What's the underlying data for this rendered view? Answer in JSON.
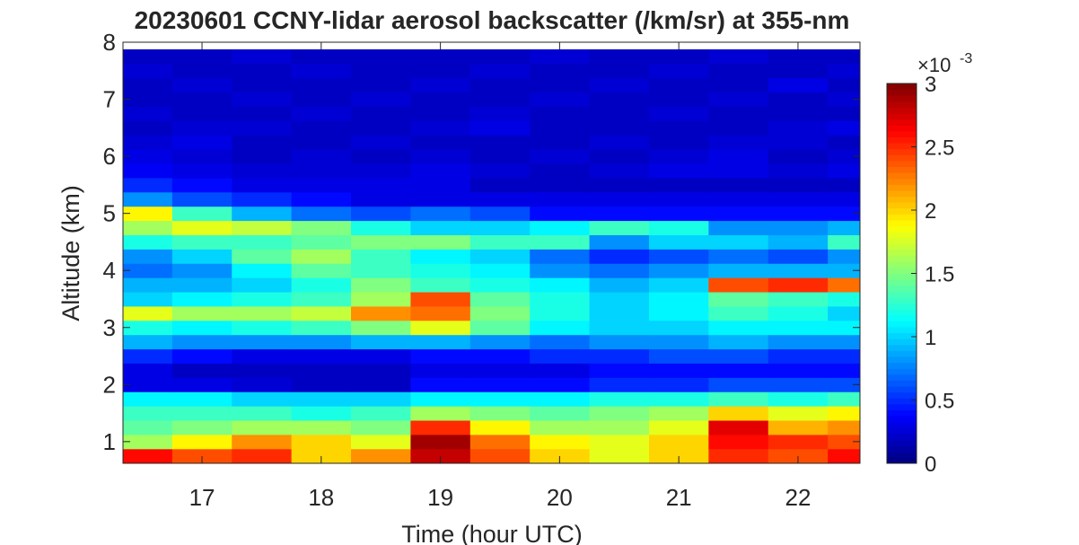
{
  "chart_data": {
    "type": "heatmap",
    "title": "20230601 CCNY-lidar aerosol backscatter (/km/sr) at 355-nm",
    "x_label": "Time (hour UTC)",
    "y_label": "Altitude (km)",
    "colormap": "jet",
    "xlim": [
      16.337,
      22.52
    ],
    "ylim": [
      0.62,
      8
    ],
    "xticks": [
      17,
      18,
      19,
      20,
      21,
      22
    ],
    "yticks": [
      1,
      2,
      3,
      4,
      5,
      6,
      7,
      8
    ],
    "clim": [
      0,
      3
    ],
    "cticks": [
      0,
      0.5,
      1,
      1.5,
      2,
      2.5,
      3
    ],
    "colorbar_multiplier": "×10",
    "colorbar_exponent": "-3",
    "x": [
      16.5,
      17,
      17.5,
      18,
      18.5,
      19,
      19.5,
      20,
      20.5,
      21,
      21.5,
      22,
      22.5
    ],
    "y": [
      0.75,
      1,
      1.25,
      1.5,
      1.75,
      2,
      2.25,
      2.5,
      2.75,
      3,
      3.25,
      3.5,
      3.75,
      4,
      4.25,
      4.5,
      4.75,
      5,
      5.25,
      5.5,
      5.75,
      6,
      6.25,
      6.5,
      6.75,
      7,
      7.25,
      7.5,
      7.75
    ],
    "z": [
      [
        2.6,
        2.4,
        2.5,
        2.0,
        2.2,
        2.8,
        2.4,
        2.0,
        1.8,
        2.0,
        2.5,
        2.4,
        2.6
      ],
      [
        1.6,
        1.9,
        2.2,
        2.0,
        1.8,
        2.9,
        2.3,
        1.9,
        1.8,
        2.0,
        2.6,
        2.5,
        2.4
      ],
      [
        1.4,
        1.5,
        1.6,
        1.6,
        1.5,
        2.5,
        1.9,
        1.6,
        1.6,
        1.8,
        2.7,
        2.1,
        2.2
      ],
      [
        1.3,
        1.3,
        1.3,
        1.2,
        1.3,
        1.6,
        1.5,
        1.4,
        1.5,
        1.6,
        2.0,
        1.8,
        1.9
      ],
      [
        1.1,
        1.1,
        1.0,
        1.0,
        1.0,
        1.1,
        1.1,
        1.1,
        1.2,
        1.2,
        1.3,
        1.2,
        1.3
      ],
      [
        0.3,
        0.3,
        0.25,
        0.2,
        0.2,
        0.4,
        0.4,
        0.4,
        0.5,
        0.5,
        0.6,
        0.6,
        0.6
      ],
      [
        0.3,
        0.2,
        0.2,
        0.2,
        0.2,
        0.3,
        0.3,
        0.3,
        0.4,
        0.4,
        0.4,
        0.4,
        0.4
      ],
      [
        0.5,
        0.4,
        0.3,
        0.3,
        0.3,
        0.4,
        0.4,
        0.5,
        0.5,
        0.6,
        0.6,
        0.5,
        0.5
      ],
      [
        0.9,
        0.8,
        0.8,
        0.8,
        0.9,
        0.9,
        0.8,
        0.7,
        0.8,
        0.8,
        0.9,
        0.8,
        0.8
      ],
      [
        1.2,
        1.1,
        1.2,
        1.3,
        1.5,
        1.8,
        1.4,
        1.1,
        1.0,
        1.0,
        1.1,
        1.1,
        1.1
      ],
      [
        1.8,
        1.6,
        1.6,
        1.7,
        2.2,
        2.3,
        1.5,
        1.2,
        1.0,
        1.1,
        1.3,
        1.2,
        1.0
      ],
      [
        1.0,
        1.1,
        1.2,
        1.3,
        1.6,
        2.4,
        1.4,
        1.2,
        1.0,
        1.1,
        1.4,
        1.3,
        1.2
      ],
      [
        0.9,
        0.9,
        1.0,
        1.2,
        1.5,
        1.3,
        1.2,
        1.1,
        0.9,
        1.0,
        2.4,
        2.5,
        2.3
      ],
      [
        0.7,
        0.8,
        1.1,
        1.4,
        1.3,
        1.2,
        1.1,
        0.8,
        0.7,
        0.8,
        0.9,
        0.9,
        0.9
      ],
      [
        0.8,
        1.0,
        1.4,
        1.6,
        1.3,
        1.1,
        1.0,
        0.7,
        0.5,
        0.6,
        0.7,
        0.6,
        0.8
      ],
      [
        1.2,
        1.3,
        1.3,
        1.4,
        1.5,
        1.5,
        1.3,
        1.3,
        0.8,
        1.0,
        1.0,
        0.9,
        1.3
      ],
      [
        1.6,
        1.8,
        1.7,
        1.5,
        1.2,
        1.0,
        1.0,
        1.1,
        1.3,
        1.2,
        0.8,
        0.8,
        0.9
      ],
      [
        1.9,
        1.3,
        0.9,
        0.7,
        0.6,
        0.7,
        0.6,
        0.4,
        0.4,
        0.4,
        0.4,
        0.4,
        0.4
      ],
      [
        0.8,
        0.6,
        0.5,
        0.4,
        0.3,
        0.3,
        0.3,
        0.3,
        0.3,
        0.3,
        0.3,
        0.3,
        0.3
      ],
      [
        0.5,
        0.4,
        0.3,
        0.3,
        0.3,
        0.3,
        0.2,
        0.2,
        0.2,
        0.2,
        0.2,
        0.2,
        0.2
      ],
      [
        0.35,
        0.3,
        0.25,
        0.25,
        0.25,
        0.3,
        0.25,
        0.2,
        0.25,
        0.3,
        0.3,
        0.25,
        0.3
      ],
      [
        0.3,
        0.25,
        0.2,
        0.25,
        0.2,
        0.25,
        0.2,
        0.25,
        0.2,
        0.25,
        0.3,
        0.2,
        0.25
      ],
      [
        0.25,
        0.3,
        0.2,
        0.2,
        0.25,
        0.2,
        0.2,
        0.2,
        0.25,
        0.2,
        0.25,
        0.25,
        0.2
      ],
      [
        0.2,
        0.25,
        0.25,
        0.2,
        0.2,
        0.25,
        0.3,
        0.2,
        0.2,
        0.2,
        0.2,
        0.25,
        0.3
      ],
      [
        0.25,
        0.2,
        0.2,
        0.25,
        0.2,
        0.2,
        0.25,
        0.2,
        0.2,
        0.25,
        0.2,
        0.2,
        0.2
      ],
      [
        0.2,
        0.2,
        0.25,
        0.2,
        0.25,
        0.2,
        0.2,
        0.25,
        0.2,
        0.2,
        0.25,
        0.2,
        0.25
      ],
      [
        0.2,
        0.25,
        0.2,
        0.2,
        0.2,
        0.25,
        0.2,
        0.2,
        0.25,
        0.2,
        0.2,
        0.3,
        0.2
      ],
      [
        0.25,
        0.2,
        0.2,
        0.25,
        0.2,
        0.2,
        0.25,
        0.2,
        0.2,
        0.25,
        0.2,
        0.2,
        0.25
      ],
      [
        0.2,
        0.2,
        0.25,
        0.2,
        0.2,
        0.2,
        0.2,
        0.25,
        0.2,
        0.2,
        0.25,
        0.2,
        0.2
      ]
    ]
  }
}
